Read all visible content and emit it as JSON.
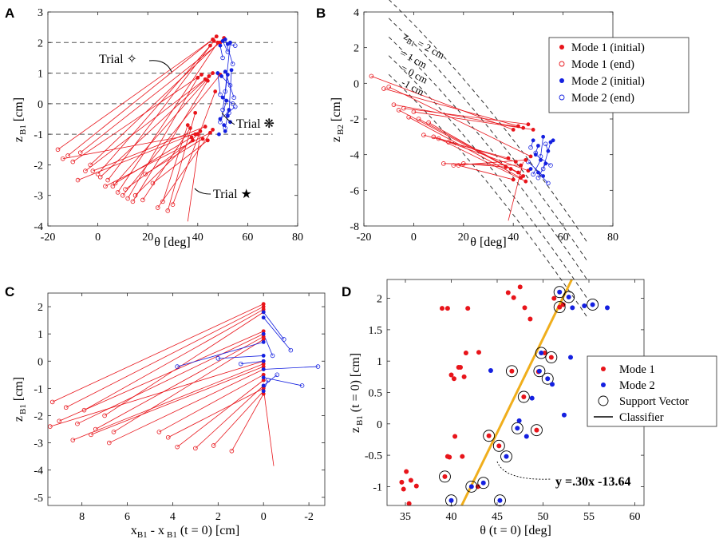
{
  "chart_data": [
    {
      "panel": "A",
      "type": "line",
      "xlabel": "θ [deg]",
      "ylabel_main": "z",
      "ylabel_sub": "B1",
      "ylabel_unit": "[cm]",
      "xlim": [
        -20,
        80
      ],
      "ylim": [
        -4,
        3
      ],
      "xticks": [
        -20,
        0,
        20,
        40,
        60,
        80
      ],
      "yticks": [
        -4,
        -3,
        -2,
        -1,
        0,
        1,
        2,
        3
      ],
      "reference_lines_y": [
        2,
        1,
        0,
        -1
      ],
      "annotations": [
        {
          "text": "Trial ✧",
          "x": 16,
          "y": 1.4
        },
        {
          "text": "Trial ❋",
          "x": 59,
          "y": -0.65
        },
        {
          "text": "Trial ★",
          "x": 58,
          "y": -2.95
        }
      ],
      "series": [
        {
          "name": "Mode 1",
          "color": "#e8141a",
          "initial_x": [
            46,
            47.5,
            49,
            50.5,
            45,
            46.5,
            48,
            40,
            41.5,
            43,
            44.5,
            46,
            49,
            44,
            37,
            39,
            41,
            43,
            45,
            37.5,
            38,
            40,
            42,
            44,
            46,
            36,
            39,
            47
          ],
          "initial_y": [
            2.1,
            2.2,
            2.0,
            2.15,
            1.9,
            2.05,
            2.0,
            0.85,
            0.95,
            0.8,
            0.9,
            1.0,
            0.95,
            0.75,
            -0.8,
            -1.0,
            -0.9,
            -0.75,
            -0.95,
            -1.1,
            -1.2,
            -1.0,
            -1.15,
            -1.2,
            -0.85,
            -0.7,
            -0.3,
            0.4
          ],
          "end_x": [
            -16,
            -12,
            -7,
            -3,
            0,
            4,
            8,
            12,
            -10,
            -5,
            1,
            6,
            10,
            14,
            18,
            -14,
            -8,
            -2,
            3,
            7,
            11,
            15,
            19,
            22,
            24,
            26,
            28,
            30
          ],
          "end_y": [
            -1.5,
            -1.7,
            -1.6,
            -2.0,
            -2.3,
            -2.5,
            -2.9,
            -3.1,
            -1.9,
            -2.2,
            -2.4,
            -2.7,
            -3.0,
            -3.2,
            -3.15,
            -1.8,
            -2.5,
            -2.2,
            -2.7,
            -2.6,
            -2.8,
            -3.0,
            -2.3,
            -2.6,
            -3.4,
            -3.2,
            -3.5,
            -3.3
          ]
        },
        {
          "name": "Mode 2",
          "color": "#1420e0",
          "initial_x": [
            49,
            50,
            51,
            52,
            53,
            48,
            49.5,
            51,
            52,
            53.5,
            50,
            51.5,
            52.5,
            49,
            50.5,
            52,
            48.5,
            51,
            53
          ],
          "initial_y": [
            1.9,
            2.05,
            2.1,
            1.95,
            2.0,
            1.0,
            0.9,
            1.05,
            0.95,
            1.1,
            0.2,
            0.1,
            -0.2,
            -0.5,
            -0.7,
            -0.4,
            -1.0,
            -0.9,
            -0.6
          ],
          "end_x": [
            50,
            52,
            54,
            55,
            51,
            49,
            53,
            54.5,
            50,
            52.5,
            54,
            49,
            51,
            55
          ],
          "end_y": [
            1.5,
            1.7,
            1.3,
            1.9,
            0.4,
            0.3,
            0.6,
            0.2,
            -0.2,
            -0.3,
            0.0,
            -0.6,
            -0.8,
            -0.1
          ]
        }
      ]
    },
    {
      "panel": "B",
      "type": "line",
      "xlabel": "θ [deg]",
      "ylabel_main": "z",
      "ylabel_sub": "B2",
      "ylabel_unit": "[cm]",
      "xlim": [
        -20,
        80
      ],
      "ylim": [
        -8,
        4
      ],
      "xticks": [
        -20,
        0,
        20,
        40,
        60,
        80
      ],
      "yticks": [
        -8,
        -6,
        -4,
        -2,
        0,
        2,
        4
      ],
      "contours": [
        {
          "label": "z",
          "label_sub": "B1",
          "label_value": "= 2 cm",
          "offset": 2
        },
        {
          "label": "= 1 cm",
          "offset": 1
        },
        {
          "label": "= 0 cm",
          "offset": 0
        },
        {
          "label": "-1 cm",
          "offset": -1
        },
        {
          "label": "",
          "offset": -2
        }
      ],
      "legend": {
        "position": "top-right",
        "entries": [
          {
            "label": "Mode 1 (initial)",
            "marker": "filled-dot",
            "color": "#e8141a"
          },
          {
            "label": "Mode 1 (end)",
            "marker": "open-circle",
            "color": "#e8141a"
          },
          {
            "label": "Mode 2 (initial)",
            "marker": "filled-dot",
            "color": "#1420e0"
          },
          {
            "label": "Mode 2 (end)",
            "marker": "open-circle",
            "color": "#1420e0"
          }
        ]
      },
      "series": [
        {
          "name": "Mode 1",
          "color": "#e8141a",
          "initial_x": [
            40,
            42,
            44,
            46,
            48,
            38,
            41,
            43,
            45,
            47,
            39,
            42,
            44,
            46,
            40,
            43,
            45,
            37
          ],
          "initial_y": [
            -2.6,
            -2.4,
            -2.5,
            -2.3,
            -2.6,
            -4.2,
            -4.4,
            -4.6,
            -4.3,
            -4.1,
            -4.8,
            -5.0,
            -5.2,
            -4.9,
            -5.4,
            -5.3,
            -5.5,
            -4.7
          ],
          "end_x": [
            -17,
            -12,
            -8,
            -4,
            0,
            4,
            8,
            12,
            16,
            -10,
            -6,
            2,
            6,
            14,
            18,
            -2,
            10,
            20
          ],
          "end_y": [
            0.4,
            -0.3,
            -1.2,
            -1.4,
            -1.6,
            -2.9,
            -3.0,
            -4.5,
            -4.6,
            -0.2,
            -1.5,
            -2.0,
            -2.2,
            -3.3,
            -4.6,
            -1.9,
            -3.1,
            -4.5
          ]
        },
        {
          "name": "Mode 2",
          "color": "#1420e0",
          "initial_x": [
            48,
            50,
            52,
            54,
            49,
            51,
            53,
            55,
            50,
            52,
            47,
            56
          ],
          "initial_y": [
            -3.2,
            -3.5,
            -3.0,
            -3.8,
            -4.0,
            -4.3,
            -4.5,
            -3.3,
            -5.0,
            -5.2,
            -4.8,
            -3.2
          ],
          "end_x": [
            47,
            49,
            51,
            53,
            55,
            48,
            50,
            52,
            54,
            46
          ],
          "end_y": [
            -3.6,
            -3.9,
            -4.1,
            -3.4,
            -4.6,
            -5.1,
            -5.3,
            -4.8,
            -5.6,
            -4.4
          ]
        }
      ]
    },
    {
      "panel": "C",
      "type": "line",
      "xlabel_main": "x",
      "xlabel_sub1": "B1",
      "xlabel_mid": " - x",
      "xlabel_sub2": "B1",
      "xlabel_tail": " (t = 0) [cm]",
      "ylabel_main": "z",
      "ylabel_sub": "B1",
      "ylabel_unit": "[cm]",
      "xlim": [
        9.5,
        -2.7
      ],
      "ylim": [
        -5.3,
        2.5
      ],
      "xticks": [
        8,
        6,
        4,
        2,
        0,
        -2
      ],
      "yticks": [
        -5,
        -4,
        -3,
        -2,
        -1,
        0,
        1,
        2
      ],
      "series": [
        {
          "name": "Mode 1",
          "color": "#e8141a",
          "start_x": 0,
          "start_y": [
            2.1,
            2.0,
            1.9,
            1.8,
            1.1,
            1.0,
            0.9,
            0.8,
            0.0,
            -0.1,
            -0.2,
            -0.3,
            -0.5,
            -0.7,
            -0.9,
            -1.0,
            -1.1,
            -1.2
          ],
          "end_x": [
            9.3,
            8.7,
            7.9,
            7.0,
            9.0,
            8.2,
            7.4,
            6.6,
            9.4,
            8.4,
            7.6,
            6.8,
            4.6,
            3.8,
            3.0,
            4.2,
            2.2,
            1.4
          ],
          "end_y": [
            -1.5,
            -1.7,
            -1.8,
            -2.0,
            -2.2,
            -2.3,
            -2.5,
            -2.6,
            -2.4,
            -2.9,
            -2.7,
            -3.0,
            -2.6,
            -3.15,
            -3.2,
            -2.8,
            -3.1,
            -3.3
          ]
        },
        {
          "name": "Mode 2",
          "color": "#1420e0",
          "start_x": 0,
          "start_y": [
            1.8,
            1.6,
            1.0,
            0.7,
            0.2,
            0.0,
            -0.3,
            -0.6,
            -0.9,
            -1.1
          ],
          "end_x": [
            -0.9,
            -1.2,
            -0.4,
            3.8,
            2.0,
            1.0,
            -2.4,
            -1.7,
            -0.6,
            -0.2
          ],
          "end_y": [
            0.8,
            0.4,
            0.2,
            -0.2,
            0.1,
            -0.1,
            -0.2,
            -0.9,
            -0.5,
            -0.7
          ]
        }
      ]
    },
    {
      "panel": "D",
      "type": "scatter",
      "xlabel": "θ (t = 0) [deg]",
      "ylabel_main": "z",
      "ylabel_sub": "B1",
      "ylabel_unit": "(t = 0) [cm]",
      "xlim": [
        33,
        61
      ],
      "ylim": [
        -1.3,
        2.3
      ],
      "xticks": [
        35,
        40,
        45,
        50,
        55,
        60
      ],
      "yticks": [
        -1,
        -0.5,
        0,
        0.5,
        1,
        1.5,
        2
      ],
      "ytick_labels": [
        "-1",
        "-0.5",
        "0",
        "0.5",
        "1",
        "1.5",
        "2"
      ],
      "legend": {
        "position": "right",
        "entries": [
          {
            "label": "Mode 1",
            "marker": "filled-dot",
            "color": "#e8141a"
          },
          {
            "label": "Mode 2",
            "marker": "filled-dot",
            "color": "#1420e0"
          },
          {
            "label": "Support Vector",
            "marker": "open-circle",
            "color": "#000000"
          },
          {
            "label": "Classifier",
            "marker": "line",
            "color": "#000000"
          }
        ]
      },
      "classifier": {
        "slope": 0.3,
        "intercept": -13.64,
        "color": "#f0ae1c",
        "label": "y =.30x -13.64"
      },
      "series": [
        {
          "name": "Mode 1",
          "color": "#e8141a",
          "x": [
            34.8,
            35.1,
            35.6,
            36.2,
            35.4,
            34.6,
            39.0,
            39.6,
            40.0,
            40.3,
            41.0,
            41.8,
            39.8,
            41.4,
            39.6,
            40.4,
            41.6,
            46.2,
            46.8,
            47.5,
            48.0,
            48.6,
            49.5,
            50.2,
            51.2,
            52.2,
            39.3,
            41.2,
            44.1,
            45.2,
            46.6,
            47.9,
            49.3,
            50.9,
            51.8,
            40.8,
            43.0,
            42.9
          ],
          "y": [
            -1.04,
            -0.76,
            -0.9,
            -0.99,
            -1.27,
            -0.93,
            1.84,
            1.84,
            0.78,
            0.72,
            0.9,
            1.84,
            -0.53,
            0.75,
            -0.52,
            -0.2,
            1.13,
            2.09,
            2.01,
            2.18,
            1.85,
            1.67,
            0.83,
            1.13,
            2.0,
            1.9,
            -0.84,
            -0.52,
            -0.19,
            -0.35,
            0.84,
            0.43,
            -0.1,
            1.06,
            1.86,
            0.9,
            1.14,
            -1.0
          ],
          "support_vector": [
            false,
            false,
            false,
            false,
            false,
            false,
            false,
            false,
            false,
            false,
            false,
            false,
            false,
            false,
            false,
            false,
            false,
            false,
            false,
            false,
            false,
            false,
            false,
            false,
            false,
            false,
            true,
            false,
            true,
            true,
            true,
            true,
            true,
            true,
            true,
            false,
            false,
            false
          ]
        },
        {
          "name": "Mode 2",
          "color": "#1420e0",
          "x": [
            40.0,
            42.2,
            43.5,
            45.3,
            46.0,
            47.2,
            48.2,
            48.8,
            49.8,
            50.5,
            51.0,
            51.8,
            52.8,
            53.2,
            54.5,
            55.4,
            57.0,
            52.3,
            53.0,
            49.6,
            44.3,
            47.4
          ],
          "y": [
            -1.22,
            -1.0,
            -0.94,
            -1.22,
            -0.52,
            -0.07,
            -0.2,
            0.41,
            1.13,
            0.72,
            0.63,
            2.1,
            2.02,
            1.85,
            1.88,
            1.9,
            1.85,
            0.14,
            1.06,
            0.84,
            0.85,
            0.05
          ],
          "support_vector": [
            true,
            true,
            true,
            true,
            true,
            true,
            false,
            false,
            true,
            true,
            false,
            true,
            true,
            false,
            false,
            true,
            false,
            false,
            false,
            true,
            false,
            false
          ]
        }
      ]
    }
  ],
  "panel_letters": [
    "A",
    "B",
    "C",
    "D"
  ]
}
